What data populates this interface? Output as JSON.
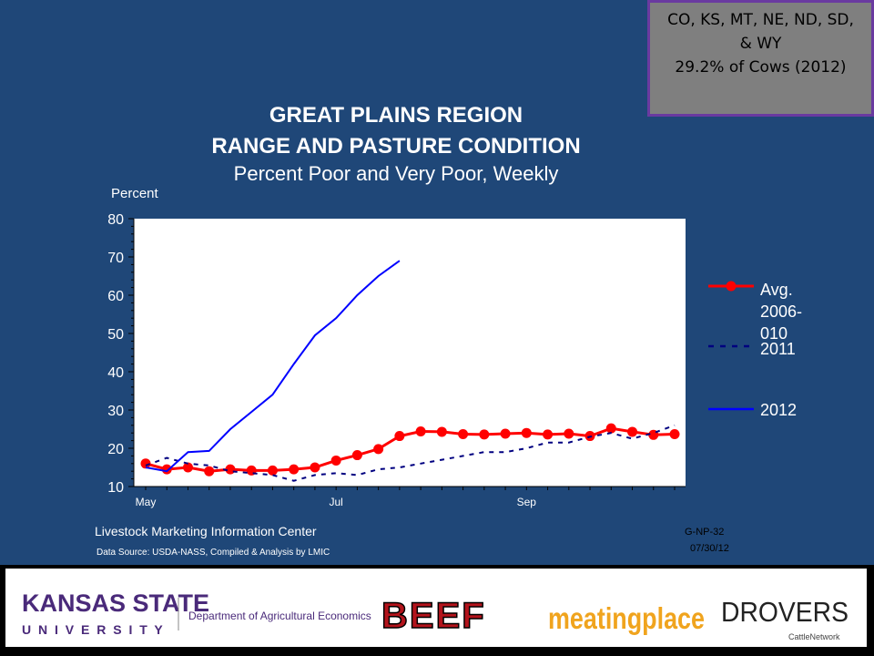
{
  "region_box": {
    "line1": "CO, KS, MT, NE, ND, SD,",
    "line2": "& WY",
    "line3": "29.2% of Cows (2012)"
  },
  "chart_data": {
    "type": "line",
    "title": "GREAT PLAINS REGION",
    "title2": "RANGE AND PASTURE CONDITION",
    "subtitle": "Percent Poor and Very Poor, Weekly",
    "ylabel": "Percent",
    "ylim": [
      10,
      80
    ],
    "yticks": [
      10,
      20,
      30,
      40,
      50,
      60,
      70,
      80
    ],
    "x_tick_labels": [
      {
        "label": "May",
        "week": 0
      },
      {
        "label": "Jul",
        "week": 9
      },
      {
        "label": "Sep",
        "week": 18
      }
    ],
    "xlim": [
      0,
      26
    ],
    "grid": false,
    "legend_position": "right",
    "series": [
      {
        "name": "Avg. 2006-010",
        "legend_lines": [
          "Avg.",
          "2006-",
          "010"
        ],
        "color": "#ff0000",
        "style": "solid-markers",
        "values": [
          16,
          14.5,
          15,
          14,
          14.5,
          14.2,
          14.2,
          14.5,
          15,
          16.8,
          18.2,
          19.8,
          23.2,
          24.4,
          24.3,
          23.7,
          23.6,
          23.8,
          24,
          23.6,
          23.8,
          23.2,
          25.2,
          24.3,
          23.5,
          23.7
        ]
      },
      {
        "name": "2011",
        "color": "#000080",
        "style": "dashed",
        "values": [
          15.5,
          17.5,
          16,
          15.5,
          14,
          13.5,
          13,
          11.5,
          13,
          13.5,
          13,
          14.5,
          15,
          16,
          17,
          18,
          19,
          19,
          20,
          21.5,
          21.5,
          23,
          24,
          22.5,
          24,
          26
        ]
      },
      {
        "name": "2012",
        "color": "#0000ff",
        "style": "solid",
        "values": [
          15,
          14,
          19,
          19.3,
          25,
          29.5,
          34,
          42,
          49.5,
          54,
          60,
          65,
          69
        ]
      }
    ]
  },
  "footer": {
    "center": "Livestock Marketing Information Center",
    "source": "Data Source:  USDA-NASS, Compiled & Analysis by LMIC",
    "code": "G-NP-32",
    "date": "07/30/12"
  },
  "logos": {
    "ksu_top": "KANSAS STATE",
    "ksu_bottom": "U N I V E R S I T Y",
    "dept": "Department of Agricultural Economics",
    "beef": "BEEF",
    "meatingplace": "meatingplace",
    "drovers": "DROVERS",
    "drovers_sub": "CattleNetwork"
  },
  "colors": {
    "background": "#1f4778",
    "plot_bg": "#ffffff",
    "box_bg": "#7f7f7f",
    "box_border": "#6a3aa0"
  }
}
